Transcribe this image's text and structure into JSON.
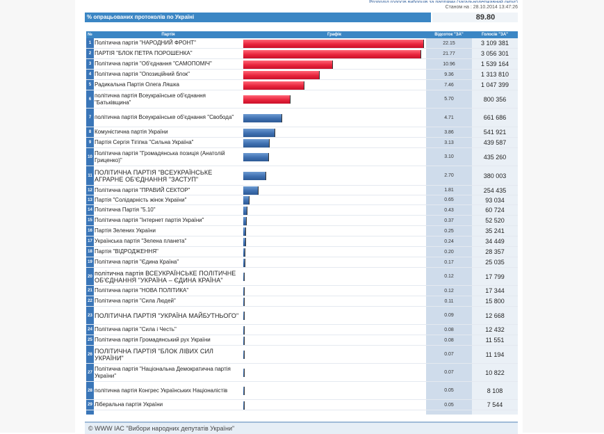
{
  "header": {
    "top_link": "Розподіл голосів виборців за партіями (загальнодержавний округ)",
    "status_time": "Станом на : 28.10.2014 13:47:26"
  },
  "summary": {
    "label": "% опрацьованих протоколів по Україні",
    "value": "89.80"
  },
  "columns": {
    "no": "№",
    "party": "Партія",
    "chart": "Графік",
    "pct": "Відсоток \"ЗА\"",
    "votes": "Голосів \"ЗА\""
  },
  "colors": {
    "leader_bar": "#e8243c",
    "other_bar": "#3e6fb0",
    "header": "#3b86c4"
  },
  "chart_data": {
    "type": "bar",
    "orientation": "horizontal",
    "title": "",
    "xlabel": "Відсоток \"ЗА\"",
    "ylabel": "Партія",
    "xlim": [
      0,
      22.15
    ],
    "categories": [
      "Політична партія \"НАРОДНИЙ ФРОНТ\"",
      "ПАРТІЯ \"БЛОК ПЕТРА ПОРОШЕНКА\"",
      "Політична партія \"Об'єднання \"САМОПОМІЧ\"",
      "Політична партія \"Опозиційний блок\"",
      "Радикальна Партія Олега Ляшка",
      "політична партія Всеукраїнське об'єднання \"Батьківщина\"",
      "політична партія Всеукраїнське об'єднання \"Свобода\"",
      "Комуністична партія України",
      "Партія Сергія Тігіпка \"Сильна Україна\"",
      "Політична партія \"Громадянська позиція (Анатолій Гриценко)\"",
      "ПОЛІТИЧНА ПАРТІЯ \"ВСЕУКРАЇНСЬКЕ АГРАРНЕ ОБ'ЄДНАННЯ \"ЗАСТУП\"",
      "Політична партія \"ПРАВИЙ СЕКТОР\"",
      "Партія \"Солідарність жінок України\"",
      "Політична Партія \"5.10\"",
      "Політична партія \"Інтернет партія України\"",
      "Партія Зелених України",
      "Українська партія \"Зелена планета\"",
      "Партія \"ВІДРОДЖЕННЯ\"",
      "Політична партія \"Єдина Країна\"",
      "політична партія ВСЕУКРАЇНСЬКЕ ПОЛІТИЧНЕ ОБ'ЄДНАННЯ \"УКРАЇНА – ЄДИНА КРАЇНА\"",
      "Політична партія \"НОВА ПОЛІТИКА\"",
      "Політична партія \"Сила Людей\"",
      "ПОЛІТИЧНА ПАРТІЯ \"УКРАЇНА МАЙБУТНЬОГО\"",
      "Політична партія \"Сила і Честь\"",
      "Політична партія Громадянський рух України",
      "ПОЛІТИЧНА ПАРТІЯ \"БЛОК ЛІВИХ СИЛ УКРАЇНИ\"",
      "Політична партія \"Національна Демократична партія України\"",
      "політична партія Конгрес Українських Націоналістів",
      "Ліберальна партія України"
    ],
    "values": [
      22.15,
      21.77,
      10.96,
      9.36,
      7.46,
      5.7,
      4.71,
      3.86,
      3.13,
      3.1,
      2.7,
      1.81,
      0.65,
      0.43,
      0.37,
      0.25,
      0.24,
      0.2,
      0.17,
      0.12,
      0.12,
      0.11,
      0.09,
      0.08,
      0.08,
      0.07,
      0.07,
      0.05,
      0.05
    ],
    "pct_labels": [
      "22.15",
      "21.77",
      "10.96",
      "9.36",
      "7.46",
      "5.70",
      "4.71",
      "3.86",
      "3.13",
      "3.10",
      "2.70",
      "1.81",
      "0.65",
      "0.43",
      "0.37",
      "0.25",
      "0.24",
      "0.20",
      "0.17",
      "0.12",
      "0.12",
      "0.11",
      "0.09",
      "0.08",
      "0.08",
      "0.07",
      "0.07",
      "0.05",
      "0.05"
    ],
    "votes": [
      "3 109 381",
      "3 056 301",
      "1 539 164",
      "1 313 810",
      "1 047 399",
      "800 356",
      "661 686",
      "541 921",
      "439 587",
      "435 260",
      "380 003",
      "254 435",
      "93 034",
      "60 724",
      "52 520",
      "35 241",
      "34 449",
      "28 357",
      "25 035",
      "17 799",
      "17 344",
      "15 800",
      "12 668",
      "12 432",
      "11 551",
      "11 194",
      "10 822",
      "8 108",
      "7 544"
    ],
    "highlighted_count": 6,
    "grid": false,
    "legend": "none"
  },
  "footer": {
    "text": "© WWW ІАС \"Вибори народних депутатів України\""
  }
}
